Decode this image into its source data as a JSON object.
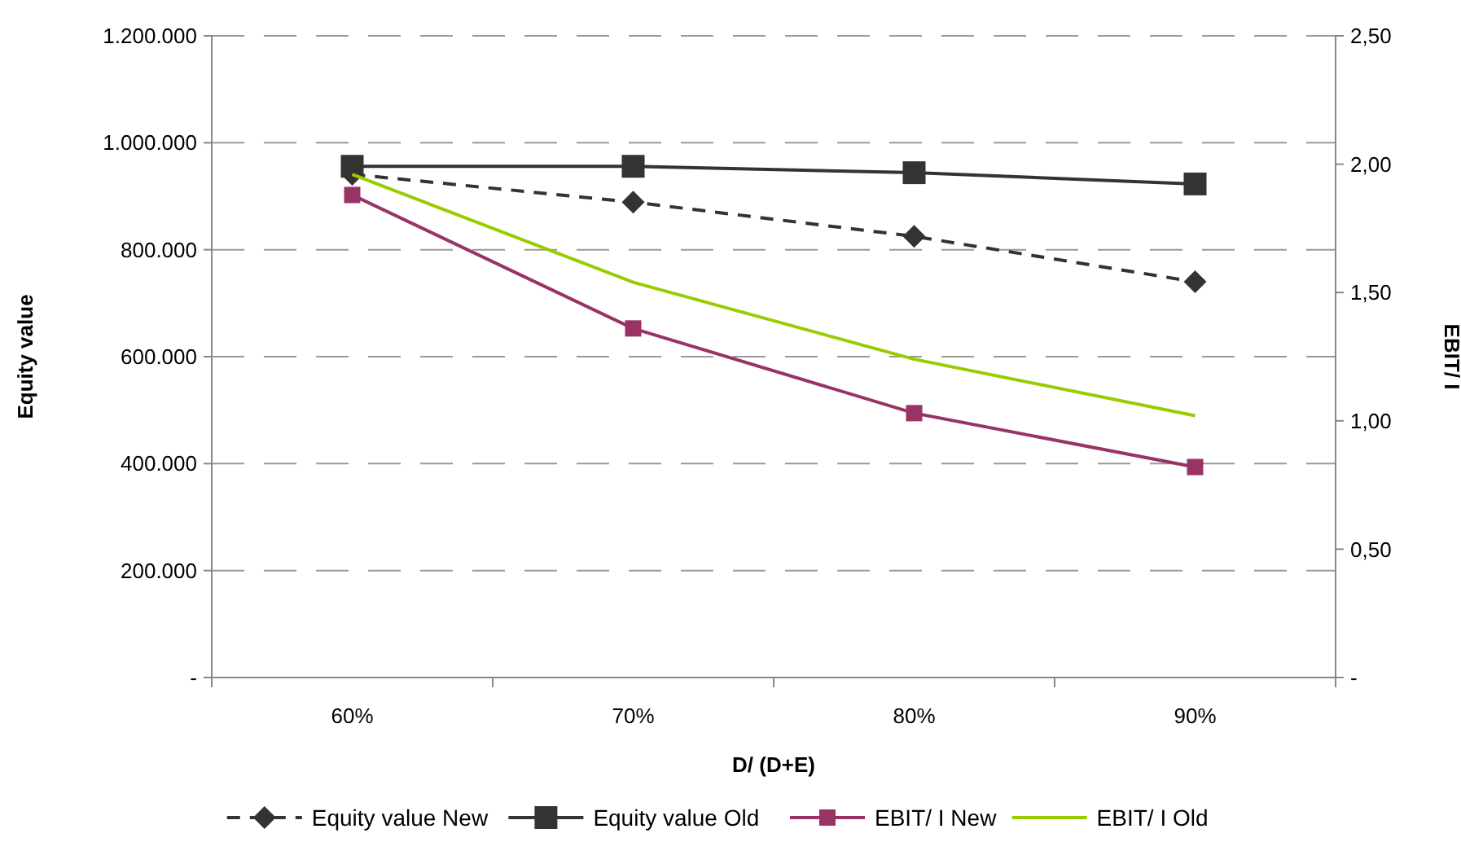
{
  "chart_data": {
    "type": "line",
    "xlabel": "D/ (D+E)",
    "ylabel": "Equity value",
    "y2label": "EBIT/ I",
    "categories": [
      "60%",
      "70%",
      "80%",
      "90%"
    ],
    "ylim": [
      0,
      1200000
    ],
    "yticks": [
      {
        "value": 0,
        "label": "-"
      },
      {
        "value": 200000,
        "label": "200.000"
      },
      {
        "value": 400000,
        "label": "400.000"
      },
      {
        "value": 600000,
        "label": "600.000"
      },
      {
        "value": 800000,
        "label": "800.000"
      },
      {
        "value": 1000000,
        "label": "1.000.000"
      },
      {
        "value": 1200000,
        "label": "1.200.000"
      }
    ],
    "y2lim": [
      0,
      2.5
    ],
    "y2ticks": [
      {
        "value": 0,
        "label": "-"
      },
      {
        "value": 0.5,
        "label": "0,50"
      },
      {
        "value": 1,
        "label": "1,00"
      },
      {
        "value": 1.5,
        "label": "1,50"
      },
      {
        "value": 2,
        "label": "2,00"
      },
      {
        "value": 2.5,
        "label": "2,50"
      }
    ],
    "grid": "y",
    "legend": "bottom",
    "series": [
      {
        "name": "Equity value New",
        "color": "#333333",
        "values": [
          941000,
          889000,
          825000,
          740000
        ],
        "marker": "diamond",
        "line_style": "dashed"
      },
      {
        "name": "Equity value Old",
        "color": "#333333",
        "values": [
          956000,
          956000,
          944000,
          923000
        ],
        "marker": "square",
        "line_style": "solid"
      },
      {
        "name": "EBIT/ I New",
        "color": "#993366",
        "values": [
          1.88,
          1.36,
          1.03,
          0.82
        ],
        "marker": "square",
        "line_style": "solid",
        "axis": "y2"
      },
      {
        "name": "EBIT/ I Old",
        "color": "#99cc00",
        "values": [
          1.96,
          1.54,
          1.24,
          1.02
        ],
        "marker": "none",
        "line_style": "solid",
        "axis": "y2"
      }
    ]
  }
}
